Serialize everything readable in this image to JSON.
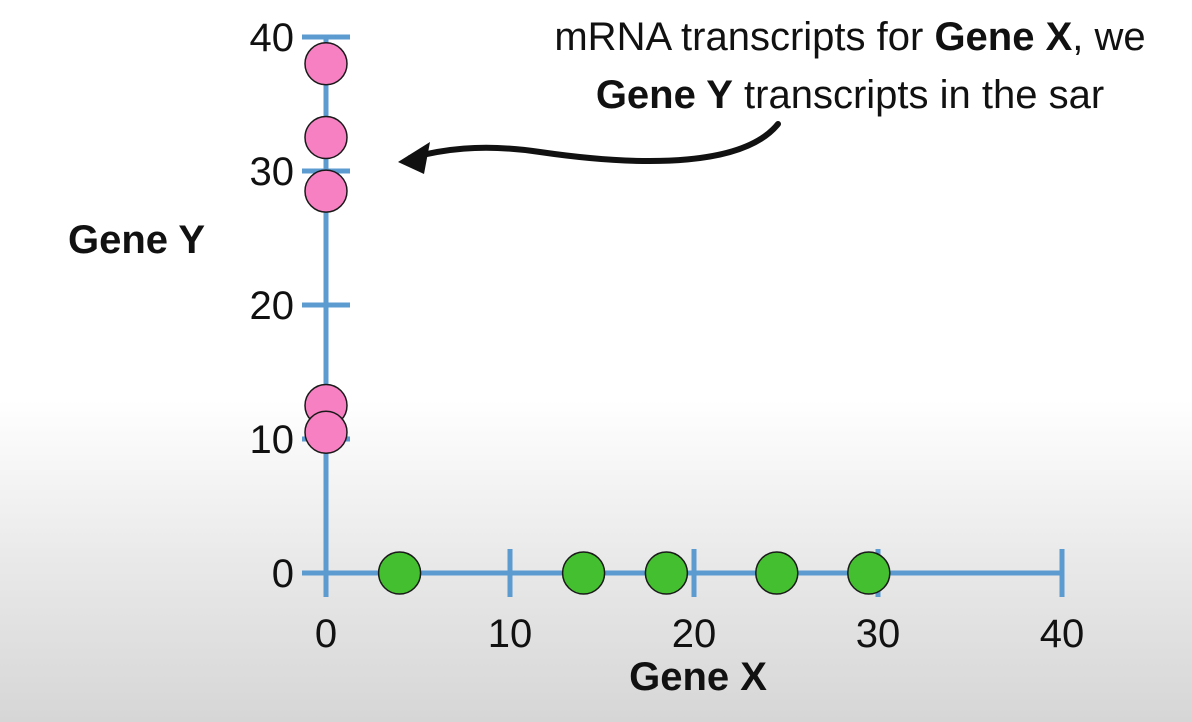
{
  "annotation": {
    "line1_a": "mRNA transcripts for ",
    "line1_b": "Gene X",
    "line1_c": ", we",
    "line2_a": "Gene Y",
    "line2_b": " transcripts in the sar"
  },
  "chart_data": {
    "type": "scatter",
    "xlabel": "Gene X",
    "ylabel": "Gene Y",
    "xlim": [
      0,
      40
    ],
    "ylim": [
      0,
      40
    ],
    "xticks": [
      "0",
      "10",
      "20",
      "30",
      "40"
    ],
    "yticks": [
      "0",
      "10",
      "20",
      "30",
      "40"
    ],
    "grid": false,
    "series": [
      {
        "color": "#f680c2",
        "points": [
          [
            0,
            38
          ],
          [
            0,
            32.5
          ],
          [
            0,
            28.5
          ],
          [
            0,
            12.5
          ],
          [
            0,
            10.5
          ]
        ]
      },
      {
        "color": "#44bf2f",
        "points": [
          [
            4,
            0
          ],
          [
            14,
            0
          ],
          [
            18.5,
            0
          ],
          [
            24.5,
            0
          ],
          [
            29.5,
            0
          ]
        ]
      }
    ],
    "colors": {
      "axis": "#5b9bd0",
      "marker_edge": "#1a1a1a"
    }
  }
}
